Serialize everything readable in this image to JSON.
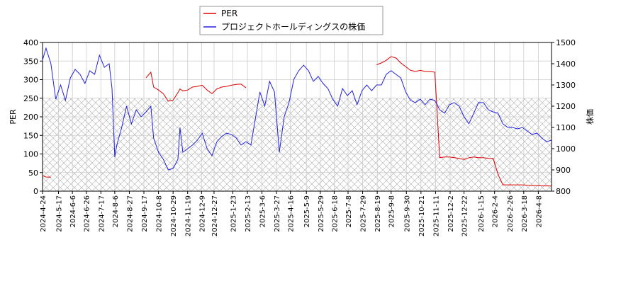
{
  "chart_data": {
    "type": "line",
    "x": [
      "2024-4-24",
      "2024-4-29",
      "2024-5-6",
      "2024-5-13",
      "2024-5-20",
      "2024-5-27",
      "2024-6-3",
      "2024-6-10",
      "2024-6-17",
      "2024-6-24",
      "2024-7-1",
      "2024-7-8",
      "2024-7-15",
      "2024-7-22",
      "2024-7-29",
      "2024-8-2",
      "2024-8-6",
      "2024-8-9",
      "2024-8-16",
      "2024-8-23",
      "2024-8-30",
      "2024-9-6",
      "2024-9-13",
      "2024-9-20",
      "2024-9-27",
      "2024-10-1",
      "2024-10-8",
      "2024-10-15",
      "2024-10-22",
      "2024-10-29",
      "2024-11-5",
      "2024-11-8",
      "2024-11-12",
      "2024-11-19",
      "2024-11-26",
      "2024-12-3",
      "2024-12-10",
      "2024-12-17",
      "2024-12-24",
      "2024-12-31",
      "2025-1-7",
      "2025-1-14",
      "2025-1-21",
      "2025-1-28",
      "2025-2-4",
      "2025-2-11",
      "2025-2-18",
      "2025-2-25",
      "2025-3-3",
      "2025-3-10",
      "2025-3-17",
      "2025-3-24",
      "2025-3-31",
      "2025-4-7",
      "2025-4-14",
      "2025-4-21",
      "2025-4-28",
      "2025-5-5",
      "2025-5-12",
      "2025-5-19",
      "2025-5-26",
      "2025-6-2",
      "2025-6-9",
      "2025-6-16",
      "2025-6-23",
      "2025-6-30",
      "2025-7-7",
      "2025-7-14",
      "2025-7-21",
      "2025-7-28",
      "2025-8-4",
      "2025-8-11",
      "2025-8-18",
      "2025-8-25",
      "2025-9-1",
      "2025-9-8",
      "2025-9-15",
      "2025-9-22",
      "2025-9-29",
      "2025-10-6",
      "2025-10-13",
      "2025-10-20",
      "2025-10-27",
      "2025-11-3",
      "2025-11-10",
      "2025-11-17",
      "2025-11-24",
      "2025-12-1",
      "2025-12-8",
      "2025-12-15",
      "2025-12-22",
      "2025-12-29",
      "2026-1-5",
      "2026-1-12",
      "2026-1-19",
      "2026-1-26",
      "2026-2-2",
      "2026-2-9",
      "2026-2-16",
      "2026-2-23",
      "2026-3-2",
      "2026-3-9",
      "2026-3-16",
      "2026-3-23",
      "2026-3-30",
      "2026-4-6",
      "2026-4-13",
      "2026-4-20",
      "2026-4-27"
    ],
    "series": [
      {
        "name": "PER",
        "color": "#dd0000",
        "axis": "y",
        "values": [
          42,
          38,
          38,
          null,
          null,
          null,
          null,
          null,
          null,
          null,
          null,
          null,
          null,
          null,
          null,
          null,
          null,
          null,
          null,
          null,
          null,
          null,
          null,
          305,
          320,
          280,
          272,
          262,
          242,
          245,
          265,
          275,
          270,
          272,
          280,
          282,
          285,
          272,
          262,
          275,
          280,
          282,
          285,
          287,
          288,
          278,
          null,
          null,
          null,
          null,
          null,
          null,
          null,
          null,
          null,
          null,
          null,
          null,
          null,
          null,
          null,
          null,
          null,
          null,
          null,
          null,
          null,
          null,
          null,
          null,
          null,
          null,
          340,
          345,
          352,
          362,
          358,
          345,
          335,
          325,
          322,
          325,
          322,
          322,
          320,
          90,
          92,
          92,
          90,
          88,
          85,
          90,
          92,
          90,
          90,
          88,
          88,
          45,
          17,
          17,
          17,
          17,
          17,
          16,
          15,
          15,
          14,
          14,
          14
        ]
      },
      {
        "name": "プロジェクトホールディングスの株価",
        "color": "#2222dd",
        "axis": "y2",
        "values": [
          1417,
          1473,
          1400,
          1233,
          1300,
          1227,
          1333,
          1373,
          1350,
          1307,
          1367,
          1350,
          1440,
          1383,
          1400,
          1283,
          960,
          1017,
          1100,
          1200,
          1117,
          1183,
          1150,
          1173,
          1200,
          1050,
          983,
          950,
          900,
          907,
          950,
          1100,
          983,
          1000,
          1017,
          1040,
          1073,
          1000,
          967,
          1033,
          1057,
          1073,
          1067,
          1050,
          1017,
          1033,
          1017,
          1150,
          1267,
          1200,
          1317,
          1267,
          983,
          1150,
          1217,
          1327,
          1367,
          1393,
          1367,
          1317,
          1340,
          1307,
          1283,
          1233,
          1200,
          1283,
          1250,
          1273,
          1207,
          1273,
          1300,
          1273,
          1300,
          1300,
          1350,
          1367,
          1350,
          1333,
          1267,
          1227,
          1217,
          1233,
          1207,
          1233,
          1227,
          1183,
          1167,
          1207,
          1217,
          1200,
          1150,
          1117,
          1167,
          1217,
          1217,
          1183,
          1173,
          1167,
          1117,
          1100,
          1100,
          1093,
          1100,
          1083,
          1067,
          1073,
          1050,
          1033,
          1040
        ]
      }
    ],
    "xlim": [
      "2024-4-24",
      "2026-4-27"
    ],
    "xticks": [
      "2024-4-24",
      "2024-5-17",
      "2024-6-6",
      "2024-6-26",
      "2024-7-17",
      "2024-8-6",
      "2024-8-27",
      "2024-9-17",
      "2024-10-8",
      "2024-10-29",
      "2024-11-19",
      "2024-12-9",
      "2024-12-27",
      "2025-1-23",
      "2025-2-13",
      "2025-3-6",
      "2025-3-27",
      "2025-4-16",
      "2025-5-9",
      "2025-5-29",
      "2025-6-18",
      "2025-7-8",
      "2025-7-29",
      "2025-8-19",
      "2025-9-8",
      "2025-9-30",
      "2025-10-21",
      "2025-11-11",
      "2025-12-2",
      "2025-12-22",
      "2026-1-15",
      "2026-2-4",
      "2026-2-26",
      "2026-3-18",
      "2026-4-8"
    ],
    "ylabel": "PER",
    "ylim": [
      0,
      400
    ],
    "yticks": [
      0,
      50,
      100,
      150,
      200,
      250,
      300,
      350,
      400
    ],
    "y2label": "株価",
    "y2lim": [
      800,
      1500
    ],
    "y2ticks": [
      800,
      900,
      1000,
      1100,
      1200,
      1300,
      1400,
      1500
    ],
    "hatch_range": [
      0,
      250
    ],
    "grid": true,
    "legend": "upper center"
  }
}
